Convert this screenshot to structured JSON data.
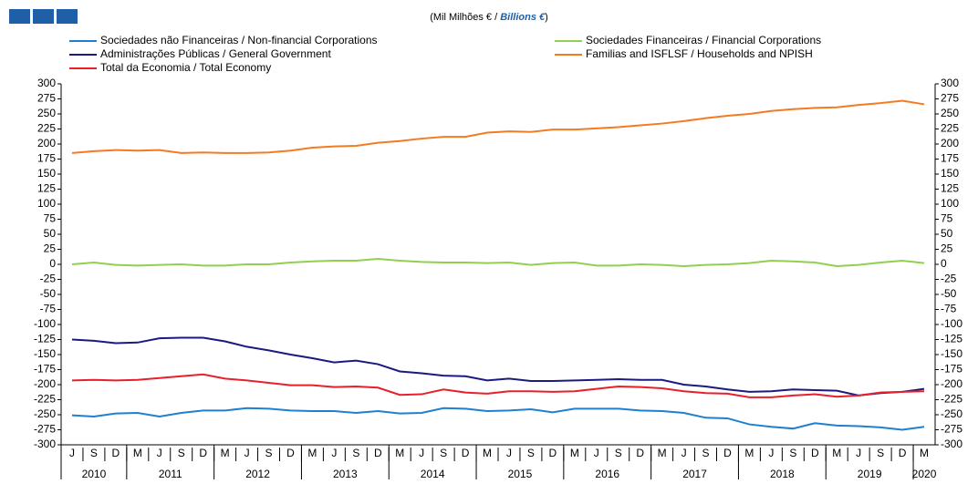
{
  "chart_data": {
    "type": "line",
    "title": [
      "(Mil Milhões € / ",
      "Billions €",
      ")"
    ],
    "categories": [
      "J",
      "S",
      "D",
      "M",
      "J",
      "S",
      "D",
      "M",
      "J",
      "S",
      "D",
      "M",
      "J",
      "S",
      "D",
      "M",
      "J",
      "S",
      "D",
      "M",
      "J",
      "S",
      "D",
      "M",
      "J",
      "S",
      "D",
      "M",
      "J",
      "S",
      "D",
      "M",
      "J",
      "S",
      "D",
      "M",
      "J",
      "S",
      "D",
      "M"
    ],
    "years": [
      "2010",
      null,
      null,
      "2011",
      null,
      null,
      null,
      "2012",
      null,
      null,
      null,
      "2013",
      null,
      null,
      null,
      "2014",
      null,
      null,
      null,
      "2015",
      null,
      null,
      null,
      "2016",
      null,
      null,
      null,
      "2017",
      null,
      null,
      null,
      "2018",
      null,
      null,
      null,
      "2019",
      null,
      null,
      null,
      "2020"
    ],
    "ylim": [
      -300,
      300
    ],
    "yticks": [
      300,
      275,
      250,
      225,
      200,
      175,
      150,
      125,
      100,
      75,
      50,
      25,
      0,
      -25,
      -50,
      -75,
      -100,
      -125,
      -150,
      -175,
      -200,
      -225,
      -250,
      -275,
      -300
    ],
    "grid": false,
    "series": [
      {
        "name": "Sociedades não Financeiras / Non-financial Corporations",
        "color": "#1f80d0",
        "values": [
          -251,
          -253,
          -248,
          -247,
          -253,
          -247,
          -243,
          -243,
          -239,
          -240,
          -243,
          -244,
          -244,
          -247,
          -244,
          -248,
          -247,
          -239,
          -240,
          -244,
          -243,
          -241,
          -246,
          -240,
          -240,
          -240,
          -243,
          -244,
          -247,
          -255,
          -256,
          -266,
          -270,
          -273,
          -264,
          -268,
          -269,
          -271,
          -275,
          -270
        ]
      },
      {
        "name": "Sociedades Financeiras / Financial Corporations",
        "color": "#8fd14f",
        "values": [
          0,
          3,
          -1,
          -2,
          -1,
          0,
          -2,
          -2,
          0,
          0,
          3,
          5,
          6,
          6,
          9,
          6,
          4,
          3,
          3,
          2,
          3,
          -1,
          2,
          3,
          -2,
          -2,
          0,
          -1,
          -3,
          -1,
          0,
          2,
          6,
          5,
          3,
          -3,
          -1,
          3,
          6,
          2
        ]
      },
      {
        "name": "Administrações Públicas / General Government",
        "color": "#1a1a80",
        "values": [
          -125,
          -127,
          -131,
          -130,
          -123,
          -122,
          -122,
          -128,
          -137,
          -143,
          -150,
          -156,
          -163,
          -160,
          -166,
          -178,
          -181,
          -185,
          -186,
          -193,
          -190,
          -194,
          -194,
          -193,
          -192,
          -191,
          -192,
          -192,
          -200,
          -203,
          -208,
          -212,
          -211,
          -208,
          -209,
          -210,
          -218,
          -214,
          -212,
          -207
        ]
      },
      {
        "name": "Familias and ISFLSF / Households and NPISH",
        "color": "#f47b20",
        "values": [
          185,
          188,
          190,
          189,
          190,
          185,
          186,
          185,
          185,
          186,
          189,
          194,
          196,
          197,
          202,
          205,
          209,
          212,
          212,
          219,
          221,
          220,
          224,
          224,
          226,
          228,
          231,
          234,
          238,
          243,
          247,
          250,
          255,
          258,
          260,
          261,
          265,
          268,
          272,
          266
        ]
      },
      {
        "name": "Total da Economia / Total Economy",
        "color": "#e8202a",
        "values": [
          -193,
          -192,
          -193,
          -192,
          -189,
          -186,
          -183,
          -190,
          -193,
          -197,
          -201,
          -201,
          -204,
          -203,
          -205,
          -217,
          -216,
          -208,
          -213,
          -215,
          -211,
          -211,
          -212,
          -211,
          -207,
          -203,
          -204,
          -206,
          -211,
          -214,
          -215,
          -221,
          -221,
          -218,
          -216,
          -220,
          -218,
          -213,
          -212,
          -211
        ]
      }
    ]
  }
}
